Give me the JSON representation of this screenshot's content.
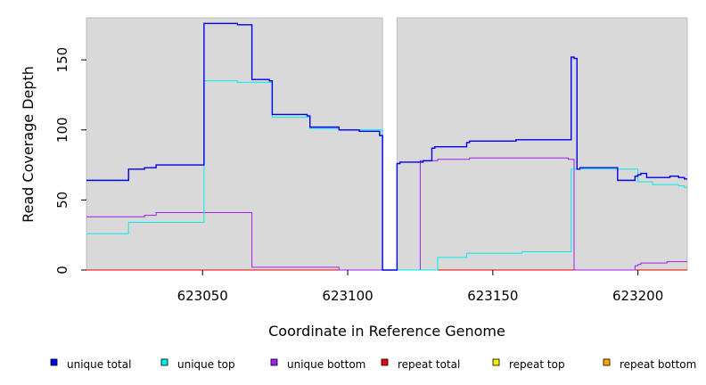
{
  "chart_data": {
    "type": "line",
    "xlabel": "Coordinate in Reference Genome",
    "ylabel": "Read Coverage Depth",
    "xlim": [
      623010,
      623217
    ],
    "ylim": [
      0,
      180
    ],
    "x_ticks": [
      623050,
      623100,
      623150,
      623200
    ],
    "x_tick_labels": [
      "623050",
      "623100",
      "623150",
      "623200"
    ],
    "y_ticks": [
      0,
      50,
      100,
      150
    ],
    "y_tick_labels": [
      "0",
      "50",
      "100",
      "150"
    ],
    "grid": false,
    "background": "#d9d9d9",
    "gaps": [
      [
        623112,
        623117
      ]
    ],
    "legend_position": "bottom",
    "series": [
      {
        "name": "unique total",
        "color": "#0000ee",
        "step": true,
        "x": [
          623010,
          623024.5,
          623030,
          623034,
          623050.5,
          623062,
          623067,
          623073,
          623074,
          623086,
          623087,
          623097,
          623104,
          623111,
          623112,
          623117,
          623118,
          623126,
          623129,
          623130,
          623141,
          623142,
          623158,
          623177,
          623178,
          623179,
          623180,
          623181,
          623193,
          623199,
          623200,
          623201,
          623203,
          623211,
          623214,
          623216,
          623217
        ],
        "y": [
          64,
          72,
          73,
          75,
          176,
          175,
          136,
          135,
          111,
          110,
          102,
          100,
          99,
          96,
          0,
          76,
          77,
          78,
          87,
          88,
          91,
          92,
          93,
          152,
          151,
          72,
          73,
          73,
          64,
          67,
          68,
          69,
          66,
          67,
          66,
          65,
          65
        ]
      },
      {
        "name": "unique top",
        "color": "#00eeee",
        "step": true,
        "x": [
          623010,
          623024.5,
          623050.5,
          623062,
          623074,
          623087,
          623097,
          623112,
          623117,
          623131,
          623141,
          623160,
          623177,
          623200,
          623205,
          623214,
          623216,
          623217
        ],
        "y": [
          26,
          34,
          135,
          134,
          109,
          101,
          100,
          0,
          0,
          9,
          12,
          13,
          72,
          63,
          61,
          60,
          59,
          59
        ]
      },
      {
        "name": "unique bottom",
        "color": "#a020f0",
        "step": true,
        "x": [
          623010,
          623030,
          623034,
          623067,
          623097,
          623112,
          623117,
          623125,
          623131,
          623142,
          623176,
          623178,
          623199,
          623200,
          623201,
          623210,
          623217
        ],
        "y": [
          38,
          39,
          41,
          2,
          0,
          0,
          0,
          78,
          79,
          80,
          79,
          0,
          3,
          4,
          5,
          6,
          6
        ]
      },
      {
        "name": "repeat total",
        "color": "#ee0000",
        "step": true,
        "x": [
          623010,
          623217
        ],
        "y": [
          0,
          0
        ]
      },
      {
        "name": "repeat top",
        "color": "#eeee00",
        "step": true,
        "x": [
          623010,
          623217
        ],
        "y": [
          0,
          0
        ]
      },
      {
        "name": "repeat bottom",
        "color": "#ffa500",
        "step": true,
        "x": [
          623010,
          623217
        ],
        "y": [
          0,
          0
        ]
      }
    ]
  }
}
